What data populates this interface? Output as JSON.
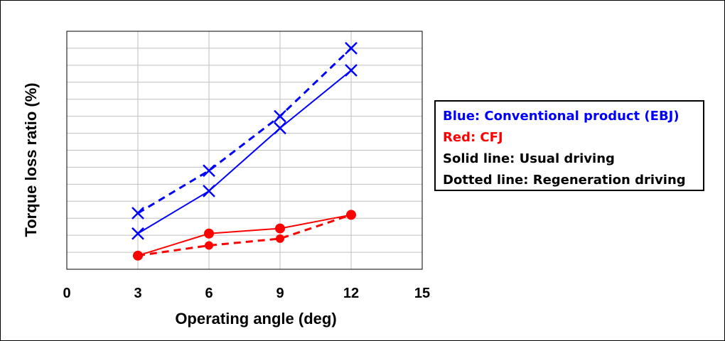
{
  "chart_data": {
    "type": "line",
    "title": "",
    "xlabel": "Operating angle (deg)",
    "ylabel": "Torque loss ratio (%)",
    "xlim": [
      0,
      15
    ],
    "xticks": [
      "0",
      "3",
      "6",
      "9",
      "12",
      "15"
    ],
    "yticks_labeled": false,
    "grid": true,
    "legend_placement": "right",
    "colors": {
      "blue": "#0000ff",
      "red": "#ff0000",
      "grid": "#bfbfbf"
    },
    "series": [
      {
        "key": "ebj-regen",
        "color": "#0000ff",
        "dash": true,
        "marker": "x",
        "x": [
          3,
          6,
          9,
          12
        ],
        "y": [
          3.3,
          5.8,
          9.0,
          13.0
        ]
      },
      {
        "key": "ebj-usual",
        "color": "#0000ff",
        "dash": false,
        "marker": "x",
        "x": [
          3,
          6,
          9,
          12
        ],
        "y": [
          2.1,
          4.6,
          8.3,
          11.7
        ]
      },
      {
        "key": "cfj-usual",
        "color": "#ff0000",
        "dash": false,
        "marker": "circle",
        "x": [
          3,
          6,
          9,
          12
        ],
        "y": [
          0.8,
          2.1,
          2.4,
          3.2
        ]
      },
      {
        "key": "cfj-regen",
        "color": "#ff0000",
        "dash": true,
        "marker": "circle",
        "x": [
          3,
          6,
          9,
          12
        ],
        "y": [
          0.8,
          1.4,
          1.8,
          3.2
        ]
      }
    ]
  },
  "legend": [
    {
      "text": "Blue: Conventional product (EBJ)",
      "color": "#0000ff"
    },
    {
      "text": "Red: CFJ",
      "color": "#ff0000"
    },
    {
      "text": "Solid line: Usual driving",
      "color": "#000000"
    },
    {
      "text": "Dotted line: Regeneration driving",
      "color": "#000000"
    }
  ]
}
